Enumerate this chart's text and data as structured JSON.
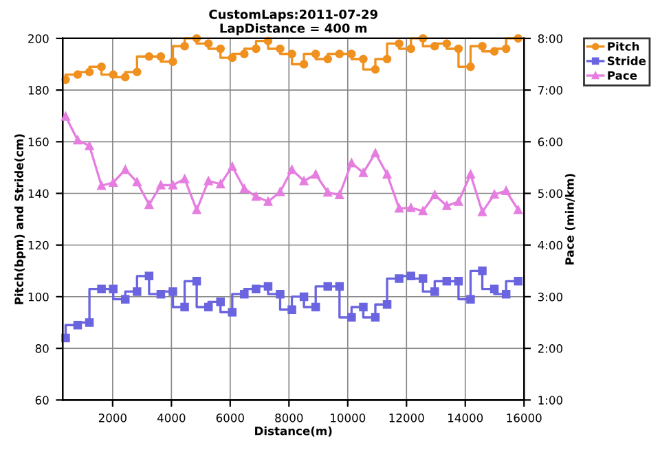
{
  "chart_data": {
    "type": "step",
    "title": "CustomLaps:2011-07-29",
    "subtitle": "LapDistance = 400 m",
    "xlabel": "Distance(m)",
    "ylabel": "Pitch(bpm) and Stride(cm)",
    "y2label": "Pace (min/km)",
    "x": [
      400,
      810,
      1210,
      1620,
      2020,
      2430,
      2830,
      3240,
      3640,
      4050,
      4450,
      4860,
      5260,
      5670,
      6070,
      6480,
      6880,
      7290,
      7700,
      8100,
      8510,
      8910,
      9320,
      9720,
      10130,
      10530,
      10940,
      11340,
      11750,
      12150,
      12560,
      12960,
      13370,
      13770,
      14180,
      14580,
      14990,
      15390,
      15800
    ],
    "series": [
      {
        "name": "Pitch",
        "color": "#f0901e",
        "marker": "circle",
        "values": [
          184,
          186,
          187,
          189,
          186,
          185,
          187,
          193,
          193,
          191,
          197,
          200,
          198,
          196,
          192.5,
          194,
          196,
          199,
          196,
          194,
          190,
          194,
          192,
          194,
          194,
          192,
          188,
          192,
          198,
          196,
          200,
          197,
          198,
          196,
          189,
          197,
          195,
          196,
          200
        ]
      },
      {
        "name": "Stride",
        "color": "#6a64e0",
        "marker": "square",
        "values": [
          84,
          89,
          90,
          103,
          103,
          99,
          102,
          108,
          101,
          102,
          96,
          106,
          96,
          98,
          94,
          101,
          103,
          104,
          101,
          95,
          100,
          96,
          104,
          104,
          92,
          96,
          92,
          97,
          107,
          108,
          107,
          102,
          106,
          106,
          99,
          110,
          103,
          101,
          106
        ]
      },
      {
        "name": "Pace",
        "type": "line",
        "axis": "y2",
        "color": "#e57ee0",
        "marker": "triangle",
        "values": [
          6.49,
          6.03,
          5.92,
          5.15,
          5.21,
          5.46,
          5.22,
          4.78,
          5.16,
          5.16,
          5.28,
          4.68,
          5.24,
          5.18,
          5.52,
          5.09,
          4.94,
          4.84,
          5.03,
          5.46,
          5.24,
          5.37,
          5.02,
          4.97,
          5.59,
          5.4,
          5.78,
          5.37,
          4.71,
          4.72,
          4.66,
          4.97,
          4.76,
          4.84,
          5.37,
          4.64,
          4.98,
          5.05,
          4.68
        ]
      }
    ],
    "xlim": [
      300,
      16000
    ],
    "xticks": [
      2000,
      4000,
      6000,
      8000,
      10000,
      12000,
      14000,
      16000
    ],
    "ylim": [
      60,
      200
    ],
    "yticks": [
      60,
      80,
      100,
      120,
      140,
      160,
      180,
      200
    ],
    "y2lim": [
      1,
      8
    ],
    "y2ticks": [
      {
        "value": 1,
        "label": "1:00"
      },
      {
        "value": 2,
        "label": "2:00"
      },
      {
        "value": 3,
        "label": "3:00"
      },
      {
        "value": 4,
        "label": "4:00"
      },
      {
        "value": 5,
        "label": "5:00"
      },
      {
        "value": 6,
        "label": "6:00"
      },
      {
        "value": 7,
        "label": "7:00"
      },
      {
        "value": 8,
        "label": "8:00"
      }
    ],
    "grid": true,
    "legend": "top right",
    "line_style": "solid"
  }
}
